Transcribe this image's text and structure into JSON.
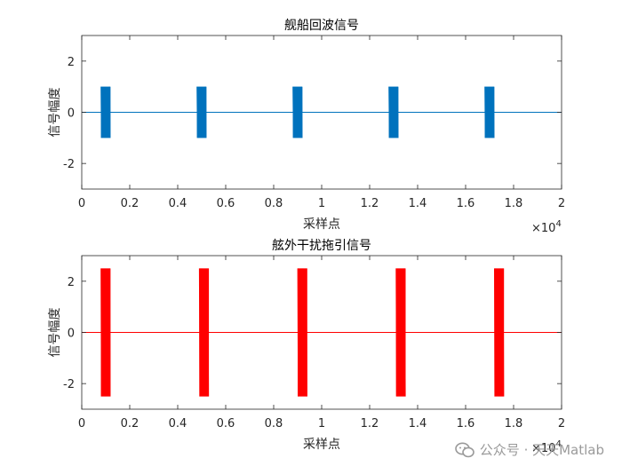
{
  "chart_data": [
    {
      "type": "line",
      "title": "舰船回波信号",
      "xlabel": "采样点",
      "ylabel": "信号幅度",
      "xlim": [
        0,
        20000
      ],
      "ylim": [
        -3,
        3
      ],
      "xticks": [
        0,
        2000,
        4000,
        6000,
        8000,
        10000,
        12000,
        14000,
        16000,
        18000,
        20000
      ],
      "xtick_labels": [
        "0",
        "0.2",
        "0.4",
        "0.6",
        "0.8",
        "1",
        "1.2",
        "1.4",
        "1.6",
        "1.8",
        "2"
      ],
      "yticks": [
        -2,
        0,
        2
      ],
      "ytick_labels": [
        "-2",
        "0",
        "2"
      ],
      "x_exponent_label": "×10",
      "x_exponent": "4",
      "color": "#0072BD",
      "baseline": 0,
      "pulse_amplitude": 1,
      "pulses": [
        [
          800,
          1200
        ],
        [
          4800,
          5200
        ],
        [
          8800,
          9200
        ],
        [
          12800,
          13200
        ],
        [
          16800,
          17200
        ]
      ]
    },
    {
      "type": "line",
      "title": "舷外干扰拖引信号",
      "xlabel": "采样点",
      "ylabel": "信号幅度",
      "xlim": [
        0,
        20000
      ],
      "ylim": [
        -3,
        3
      ],
      "xticks": [
        0,
        2000,
        4000,
        6000,
        8000,
        10000,
        12000,
        14000,
        16000,
        18000,
        20000
      ],
      "xtick_labels": [
        "0",
        "0.2",
        "0.4",
        "0.6",
        "0.8",
        "1",
        "1.2",
        "1.4",
        "1.6",
        "1.8",
        "2"
      ],
      "yticks": [
        -2,
        0,
        2
      ],
      "ytick_labels": [
        "-2",
        "0",
        "2"
      ],
      "x_exponent_label": "×10",
      "x_exponent": "4",
      "color": "#FF0000",
      "baseline": 0,
      "pulse_amplitude": 2.5,
      "pulses": [
        [
          800,
          1200
        ],
        [
          4900,
          5300
        ],
        [
          9000,
          9400
        ],
        [
          13100,
          13500
        ],
        [
          17200,
          17600
        ]
      ]
    }
  ],
  "watermark": {
    "text": "公众号 · 天天Matlab",
    "icon": "wechat-icon"
  }
}
